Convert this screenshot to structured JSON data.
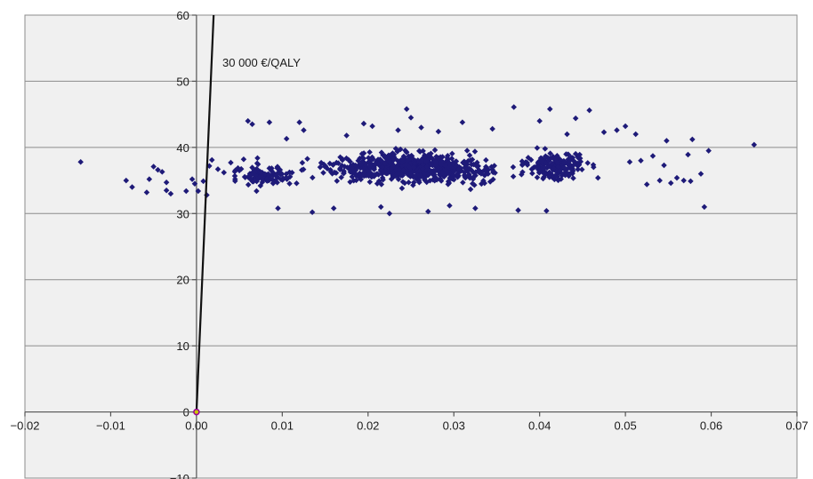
{
  "chart_data": {
    "type": "scatter",
    "title": "",
    "xlabel": "",
    "ylabel": "",
    "xlim": [
      -0.02,
      0.07
    ],
    "ylim": [
      -10,
      60
    ],
    "x_ticks": [
      -0.02,
      -0.01,
      0.0,
      0.01,
      0.02,
      0.03,
      0.04,
      0.05,
      0.06,
      0.07
    ],
    "x_tick_labels": [
      "−0.02",
      "−0.01",
      "0.00",
      "0.01",
      "0.02",
      "0.03",
      "0.04",
      "0.05",
      "0.06",
      "0.07"
    ],
    "y_ticks": [
      -10,
      0,
      10,
      20,
      30,
      40,
      50,
      60
    ],
    "y_tick_labels": [
      "−10",
      "0",
      "10",
      "20",
      "30",
      "40",
      "50",
      "60"
    ],
    "grid": {
      "horizontal": true,
      "vertical": false
    },
    "legend": "none",
    "colors": {
      "points": "#1e1a78",
      "line": "#111111",
      "plot_background": "#f0f0f0",
      "grid": "#8c8c8c",
      "origin_fill": "#c8c800",
      "origin_stroke": "#9b009b"
    },
    "threshold_line": {
      "label": "30 000 €/QALY",
      "points": [
        [
          0,
          0
        ],
        [
          0.002,
          60
        ]
      ]
    },
    "origin_point": {
      "x": 0,
      "y": 0
    },
    "series": [
      {
        "points": [
          [
            -0.0135,
            37.8
          ],
          [
            -0.0082,
            35.0
          ],
          [
            -0.0075,
            34.0
          ],
          [
            -0.0058,
            33.2
          ],
          [
            -0.0055,
            35.2
          ],
          [
            -0.005,
            37.1
          ],
          [
            -0.0045,
            36.6
          ],
          [
            -0.004,
            36.3
          ],
          [
            -0.0035,
            34.7
          ],
          [
            -0.0035,
            33.5
          ],
          [
            -0.003,
            33.0
          ],
          [
            -0.0012,
            33.4
          ],
          [
            -0.0005,
            35.2
          ],
          [
            -0.0002,
            34.5
          ],
          [
            0.0002,
            33.4
          ],
          [
            0.0008,
            34.9
          ],
          [
            0.0012,
            32.8
          ],
          [
            0.0015,
            37.2
          ],
          [
            0.0018,
            38.1
          ],
          [
            0.0025,
            36.7
          ],
          [
            0.0032,
            36.2
          ],
          [
            0.004,
            37.7
          ],
          [
            0.0045,
            35.2
          ],
          [
            0.005,
            36.5
          ],
          [
            0.0055,
            38.2
          ],
          [
            0.006,
            44.0
          ],
          [
            0.0065,
            43.5
          ],
          [
            0.007,
            33.4
          ],
          [
            0.0085,
            43.8
          ],
          [
            0.0095,
            30.8
          ],
          [
            0.0105,
            41.3
          ],
          [
            0.012,
            43.8
          ],
          [
            0.0125,
            42.6
          ],
          [
            0.0135,
            30.2
          ],
          [
            0.016,
            30.8
          ],
          [
            0.0175,
            41.8
          ],
          [
            0.0195,
            43.6
          ],
          [
            0.0205,
            43.2
          ],
          [
            0.0215,
            31.0
          ],
          [
            0.0225,
            30.0
          ],
          [
            0.0235,
            42.6
          ],
          [
            0.0245,
            45.8
          ],
          [
            0.025,
            44.5
          ],
          [
            0.0262,
            43.0
          ],
          [
            0.027,
            30.3
          ],
          [
            0.0282,
            42.4
          ],
          [
            0.0295,
            31.2
          ],
          [
            0.031,
            43.8
          ],
          [
            0.0325,
            30.8
          ],
          [
            0.0345,
            42.8
          ],
          [
            0.037,
            46.1
          ],
          [
            0.0375,
            30.5
          ],
          [
            0.04,
            44.0
          ],
          [
            0.0408,
            30.4
          ],
          [
            0.0412,
            45.8
          ],
          [
            0.0432,
            42.0
          ],
          [
            0.0442,
            44.4
          ],
          [
            0.0458,
            45.6
          ],
          [
            0.0468,
            35.4
          ],
          [
            0.0475,
            42.3
          ],
          [
            0.049,
            42.6
          ],
          [
            0.05,
            43.2
          ],
          [
            0.0505,
            37.8
          ],
          [
            0.0512,
            42.0
          ],
          [
            0.0518,
            38.0
          ],
          [
            0.0525,
            34.4
          ],
          [
            0.0532,
            38.7
          ],
          [
            0.054,
            35.0
          ],
          [
            0.0545,
            37.3
          ],
          [
            0.0548,
            41.0
          ],
          [
            0.0553,
            34.6
          ],
          [
            0.056,
            35.4
          ],
          [
            0.0568,
            35.0
          ],
          [
            0.0573,
            38.9
          ],
          [
            0.0576,
            34.9
          ],
          [
            0.0578,
            41.2
          ],
          [
            0.0588,
            36.0
          ],
          [
            0.0592,
            31.0
          ],
          [
            0.0597,
            39.5
          ],
          [
            0.065,
            40.4
          ]
        ],
        "dense_cloud": {
          "count": 980,
          "regions": [
            {
              "x_center": 0.025,
              "x_spread": 0.012,
              "y_center": 36.9,
              "y_spread": 2.4,
              "weight": 0.72
            },
            {
              "x_center": 0.008,
              "x_spread": 0.004,
              "y_center": 35.8,
              "y_spread": 2.0,
              "weight": 0.1
            },
            {
              "x_center": 0.042,
              "x_spread": 0.005,
              "y_center": 37.2,
              "y_spread": 2.4,
              "weight": 0.18
            }
          ],
          "y_range": [
            30.0,
            42.0
          ],
          "x_range": [
            0.003,
            0.05
          ]
        }
      }
    ]
  }
}
